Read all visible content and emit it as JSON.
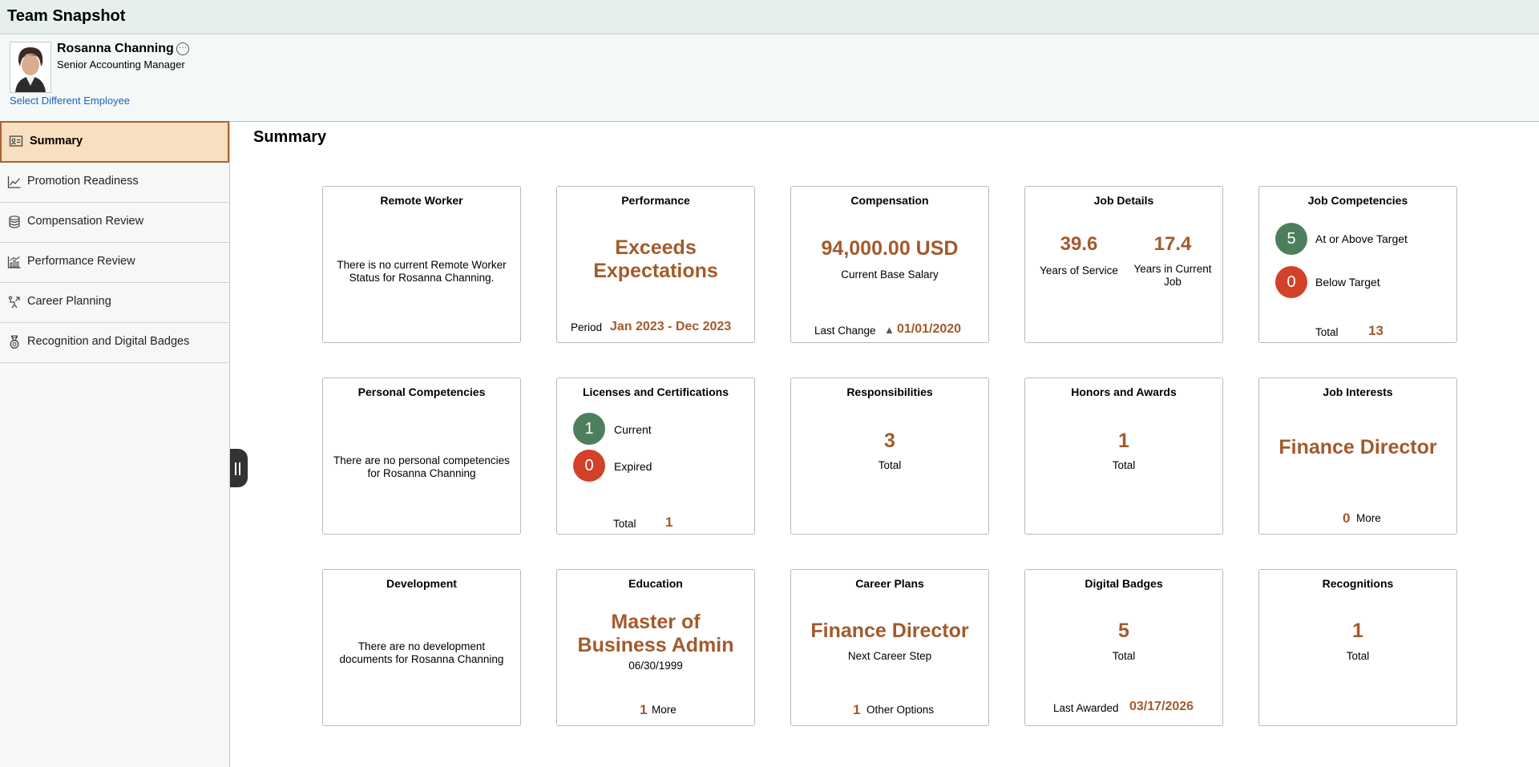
{
  "app": {
    "title": "Team Snapshot"
  },
  "employee": {
    "name": "Rosanna Channing",
    "title": "Senior Accounting Manager",
    "select_link": "Select Different Employee"
  },
  "nav": [
    {
      "label": "Summary",
      "icon": "id-card-icon",
      "active": true
    },
    {
      "label": "Promotion Readiness",
      "icon": "line-chart-icon"
    },
    {
      "label": "Compensation Review",
      "icon": "database-icon"
    },
    {
      "label": "Performance Review",
      "icon": "bar-chart-icon"
    },
    {
      "label": "Career Planning",
      "icon": "career-path-icon"
    },
    {
      "label": "Recognition and Digital Badges",
      "icon": "medal-icon"
    }
  ],
  "main": {
    "title": "Summary"
  },
  "tiles": {
    "remote_worker": {
      "title": "Remote Worker",
      "message": "There is no current Remote Worker Status for Rosanna Channing."
    },
    "performance": {
      "title": "Performance",
      "rating_line1": "Exceeds",
      "rating_line2": "Expectations",
      "period_label": "Period",
      "period_value": "Jan 2023 - Dec 2023"
    },
    "compensation": {
      "title": "Compensation",
      "amount": "94,000.00 USD",
      "label": "Current Base Salary",
      "last_change_label": "Last Change",
      "last_change_value": "01/01/2020"
    },
    "job_details": {
      "title": "Job Details",
      "years_service": "39.6",
      "years_service_label": "Years of Service",
      "years_job": "17.4",
      "years_job_label_1": "Years in Current",
      "years_job_label_2": "Job"
    },
    "job_competencies": {
      "title": "Job Competencies",
      "above_count": "5",
      "above_label": "At or Above Target",
      "below_count": "0",
      "below_label": "Below Target",
      "total_label": "Total",
      "total_value": "13"
    },
    "personal_competencies": {
      "title": "Personal Competencies",
      "message": "There are no personal competencies for Rosanna Channing"
    },
    "licenses": {
      "title": "Licenses and Certifications",
      "current_count": "1",
      "current_label": "Current",
      "expired_count": "0",
      "expired_label": "Expired",
      "total_label": "Total",
      "total_value": "1"
    },
    "responsibilities": {
      "title": "Responsibilities",
      "value": "3",
      "label": "Total"
    },
    "honors": {
      "title": "Honors and Awards",
      "value": "1",
      "label": "Total"
    },
    "job_interests": {
      "title": "Job Interests",
      "value": "Finance Director",
      "more_count": "0",
      "more_label": "More"
    },
    "development": {
      "title": "Development",
      "message": "There are no development documents for Rosanna Channing"
    },
    "education": {
      "title": "Education",
      "degree_line1": "Master of",
      "degree_line2": "Business Admin",
      "date": "06/30/1999",
      "more_count": "1",
      "more_label": "More"
    },
    "career_plans": {
      "title": "Career Plans",
      "value": "Finance Director",
      "label": "Next Career Step",
      "other_count": "1",
      "other_label": "Other Options"
    },
    "digital_badges": {
      "title": "Digital Badges",
      "value": "5",
      "label": "Total",
      "last_label": "Last Awarded",
      "last_value": "03/17/2026"
    },
    "recognitions": {
      "title": "Recognitions",
      "value": "1",
      "label": "Total"
    }
  }
}
